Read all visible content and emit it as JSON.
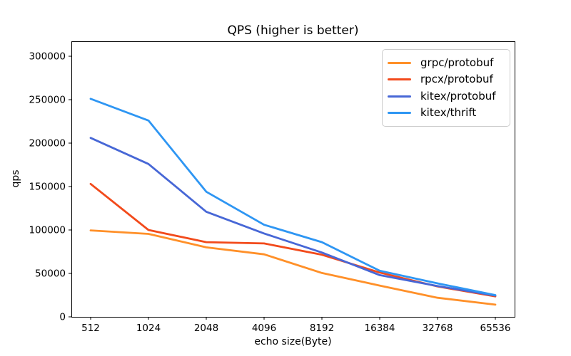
{
  "chart_data": {
    "type": "line",
    "title": "QPS (higher is better)",
    "xlabel": "echo size(Byte)",
    "ylabel": "qps",
    "categories": [
      "512",
      "1024",
      "2048",
      "4096",
      "8192",
      "16384",
      "32768",
      "65536"
    ],
    "yticks": [
      0,
      50000,
      100000,
      150000,
      200000,
      250000,
      300000
    ],
    "ylim": [
      0,
      317000
    ],
    "grid": false,
    "legend_position": "upper right",
    "background": "#ffffff",
    "spine_color": "#000000",
    "series": [
      {
        "name": "grpc/protobuf",
        "color": "#ff9029",
        "values": [
          99500,
          95500,
          80000,
          72000,
          50500,
          36000,
          22000,
          14000
        ]
      },
      {
        "name": "rpcx/protobuf",
        "color": "#f24a1b",
        "values": [
          153000,
          100000,
          86000,
          84500,
          71500,
          51000,
          35000,
          23500
        ]
      },
      {
        "name": "kitex/protobuf",
        "color": "#4767d6",
        "values": [
          206000,
          176000,
          121000,
          96000,
          74000,
          48000,
          35500,
          24500
        ]
      },
      {
        "name": "kitex/thrift",
        "color": "#2e96f3",
        "values": [
          251000,
          226000,
          144000,
          106000,
          86000,
          53000,
          38500,
          25000
        ]
      }
    ]
  }
}
